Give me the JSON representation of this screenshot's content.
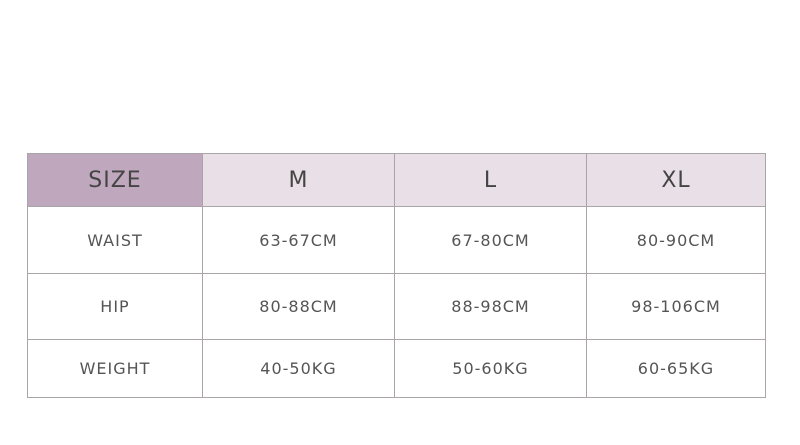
{
  "table": {
    "header": [
      "SIZE",
      "M",
      "L",
      "XL"
    ],
    "rows": [
      [
        "WAIST",
        "63-67CM",
        "67-80CM",
        "80-90CM"
      ],
      [
        "HIP",
        "80-88CM",
        "88-98CM",
        "98-106CM"
      ],
      [
        "WEIGHT",
        "40-50KG",
        "50-60KG",
        "60-65KG"
      ]
    ]
  },
  "colors": {
    "size_header": "#bfa8bd",
    "header": "#e9dfe7",
    "border": "#a9a5a8"
  }
}
